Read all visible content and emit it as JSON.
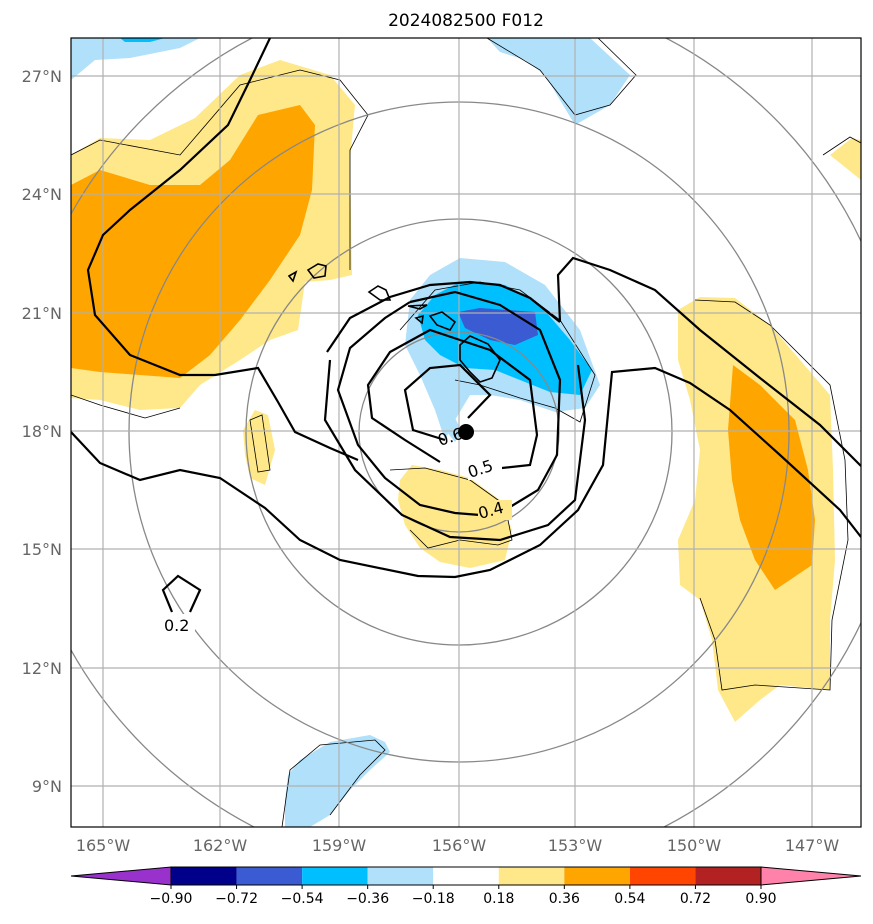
{
  "title": "2024082500 F012",
  "map": {
    "lon_range": [
      -166,
      -146
    ],
    "lat_range": [
      8,
      28
    ],
    "lon_ticks": [
      "165°W",
      "162°W",
      "159°W",
      "156°W",
      "153°W",
      "150°W",
      "147°W"
    ],
    "lat_ticks": [
      "27°N",
      "24°N",
      "21°N",
      "18°N",
      "15°N",
      "12°N",
      "9°N"
    ],
    "grid": true,
    "storm_center": {
      "lon": -155.8,
      "lat": 18.0
    },
    "contour_labels": [
      "0.6",
      "0.5",
      "0.4",
      "0.2"
    ]
  },
  "colorbar": {
    "ticks": [
      "−0.90",
      "−0.72",
      "−0.54",
      "−0.36",
      "−0.18",
      "0.18",
      "0.36",
      "0.54",
      "0.72",
      "0.90"
    ],
    "colors": [
      "#9932cc",
      "#00008b",
      "#3a5bd2",
      "#00bfff",
      "#b0e0fa",
      "#ffffff",
      "#ffe88a",
      "#ffa500",
      "#ff4500",
      "#b22222",
      "#ff82ab"
    ]
  }
}
